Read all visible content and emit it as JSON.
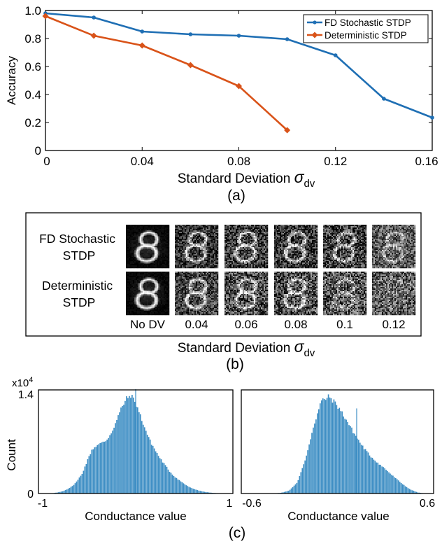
{
  "panel_a": {
    "ylabel": "Accuracy",
    "xlabel": "Standard Deviation",
    "xlabel_symbol": "σ",
    "xlabel_sub": "dv",
    "caption": "(a)",
    "legend": [
      "FD Stochastic STDP",
      "Deterministic STDP"
    ]
  },
  "panel_b": {
    "row_labels": [
      [
        "FD Stochastic",
        "STDP"
      ],
      [
        "Deterministic",
        "STDP"
      ]
    ],
    "col_labels": [
      "No DV",
      "0.04",
      "0.06",
      "0.08",
      "0.1",
      "0.12"
    ],
    "xlabel": "Standard Deviation",
    "xlabel_symbol": "σ",
    "xlabel_sub": "dv",
    "caption": "(b)"
  },
  "panel_c": {
    "ylabel": "Count",
    "multiplier_base": "x10",
    "multiplier_exp": "4",
    "left": {
      "xlabel": "Conductance value",
      "xticks": [
        "-1",
        "1"
      ],
      "yticks": [
        "0",
        "1.4"
      ]
    },
    "right": {
      "xlabel": "Conductance value",
      "xticks": [
        "-0.6",
        "0.6"
      ]
    },
    "caption": "(c)"
  },
  "chart_data": [
    {
      "type": "line",
      "xlabel": "Standard Deviation σdv",
      "ylabel": "Accuracy",
      "xlim": [
        0,
        0.16
      ],
      "ylim": [
        0,
        1.0
      ],
      "xticks": [
        "0",
        "0.04",
        "0.08",
        "0.12",
        "0.16"
      ],
      "yticks": [
        "0",
        "0.2",
        "0.4",
        "0.6",
        "0.8",
        "1.0"
      ],
      "legend_position": "top-right",
      "series": [
        {
          "name": "FD Stochastic STDP",
          "color": "#1f6fb4",
          "marker": "dot",
          "x": [
            0,
            0.02,
            0.04,
            0.06,
            0.08,
            0.1,
            0.12,
            0.14,
            0.16
          ],
          "y": [
            0.98,
            0.95,
            0.85,
            0.83,
            0.82,
            0.795,
            0.68,
            0.37,
            0.235
          ]
        },
        {
          "name": "Deterministic STDP",
          "color": "#d95319",
          "marker": "diamond",
          "x": [
            0,
            0.02,
            0.04,
            0.06,
            0.08,
            0.1
          ],
          "y": [
            0.96,
            0.82,
            0.75,
            0.61,
            0.46,
            0.145
          ]
        }
      ]
    },
    {
      "type": "bar",
      "ylabel": "Count",
      "xlabel": "Conductance value",
      "xlim": [
        -1,
        1
      ],
      "ylim": [
        0,
        14000
      ],
      "color": "#3e8ec4",
      "bin_centers": [
        -0.9,
        -0.85,
        -0.8,
        -0.75,
        -0.7,
        -0.65,
        -0.6,
        -0.55,
        -0.5,
        -0.45,
        -0.4,
        -0.35,
        -0.3,
        -0.25,
        -0.2,
        -0.15,
        -0.1,
        -0.05,
        0,
        0.05,
        0.1,
        0.15,
        0.2,
        0.25,
        0.3,
        0.35,
        0.4,
        0.45,
        0.5,
        0.55,
        0.6,
        0.65,
        0.7,
        0.75,
        0.8,
        0.85,
        0.9
      ],
      "counts": [
        0,
        50,
        150,
        300,
        600,
        1000,
        1700,
        2700,
        4300,
        5900,
        6500,
        6800,
        7200,
        8200,
        9700,
        11400,
        12700,
        13300,
        12300,
        10500,
        8700,
        7100,
        5900,
        4800,
        3900,
        3000,
        2300,
        1800,
        1300,
        900,
        600,
        400,
        250,
        150,
        80,
        40,
        0
      ],
      "peak_marker": {
        "x": 0.0,
        "y": 14100
      }
    },
    {
      "type": "bar",
      "ylabel": "Count",
      "xlabel": "Conductance value",
      "xlim": [
        -0.6,
        0.6
      ],
      "ylim": [
        0,
        14000
      ],
      "color": "#3e8ec4",
      "bin_centers": [
        -0.55,
        -0.5,
        -0.45,
        -0.4,
        -0.35,
        -0.3,
        -0.25,
        -0.2,
        -0.15,
        -0.1,
        -0.05,
        0,
        0.05,
        0.1,
        0.15,
        0.2,
        0.25,
        0.3,
        0.35,
        0.4,
        0.45,
        0.5,
        0.55
      ],
      "counts": [
        0,
        0,
        0,
        0,
        100,
        400,
        1500,
        4500,
        9000,
        12500,
        13100,
        11900,
        10200,
        8300,
        6600,
        5200,
        4200,
        3300,
        2300,
        1400,
        600,
        150,
        0
      ],
      "peak_marker": {
        "x": 0.12,
        "y": 11500
      }
    }
  ]
}
